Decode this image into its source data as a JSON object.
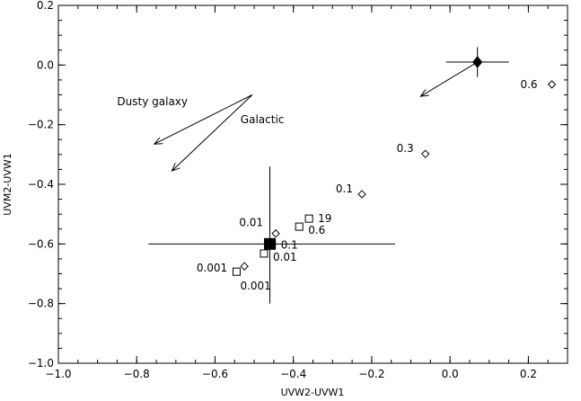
{
  "chart_data": {
    "type": "scatter",
    "xlabel": "UVW2-UVW1",
    "ylabel": "UVM2-UVW1",
    "xlim": [
      -1.0,
      0.3
    ],
    "ylim": [
      -1.0,
      0.2
    ],
    "xticks": [
      -1.0,
      -0.8,
      -0.6,
      -0.4,
      -0.2,
      0.0,
      0.2
    ],
    "yticks": [
      -1.0,
      -0.8,
      -0.6,
      -0.4,
      -0.2,
      0.0,
      0.2
    ],
    "xtick_labels": [
      "−1.0",
      "−0.8",
      "−0.6",
      "−0.4",
      "−0.2",
      "0.0",
      "0.2"
    ],
    "ytick_labels": [
      "−1.0",
      "−0.8",
      "−0.6",
      "−0.4",
      "−0.2",
      "0.0",
      "0.2"
    ],
    "grid": false,
    "series": [
      {
        "marker": "open-diamond",
        "points": [
          {
            "x": 0.26,
            "y": -0.065,
            "label": "0.6"
          },
          {
            "x": -0.063,
            "y": -0.298,
            "label": "0.3"
          },
          {
            "x": -0.225,
            "y": -0.433,
            "label": "0.1"
          },
          {
            "x": -0.445,
            "y": -0.565,
            "label": "0.01"
          },
          {
            "x": -0.525,
            "y": -0.675,
            "label": "0.001"
          }
        ]
      },
      {
        "marker": "open-square",
        "points": [
          {
            "x": -0.36,
            "y": -0.515,
            "label": "19"
          },
          {
            "x": -0.385,
            "y": -0.542,
            "label": "0.6"
          },
          {
            "x": -0.455,
            "y": -0.603,
            "label": "0.1"
          },
          {
            "x": -0.475,
            "y": -0.632,
            "label": "0.01"
          },
          {
            "x": -0.545,
            "y": -0.693,
            "label": "0.001"
          }
        ]
      },
      {
        "marker": "filled-square",
        "points": [
          {
            "x": -0.46,
            "y": -0.6,
            "xerr": [
              0.31,
              0.32
            ],
            "yerr": [
              0.2,
              0.26
            ]
          }
        ]
      },
      {
        "marker": "filled-diamond",
        "points": [
          {
            "x": 0.07,
            "y": 0.01,
            "xerr": [
              0.08,
              0.08
            ],
            "yerr": [
              0.05,
              0.05
            ]
          }
        ]
      }
    ],
    "arrows": [
      {
        "name": "dusty-galaxy",
        "from": [
          -0.505,
          -0.1
        ],
        "to": [
          -0.71,
          -0.355
        ]
      },
      {
        "name": "galactic",
        "from": [
          -0.505,
          -0.1
        ],
        "to": [
          -0.755,
          -0.265
        ]
      },
      {
        "name": "source-vector",
        "from": [
          0.07,
          0.01
        ],
        "to": [
          -0.075,
          -0.105
        ]
      }
    ],
    "annotations": [
      {
        "text": "Dusty galaxy",
        "x": -0.85,
        "y": -0.135
      },
      {
        "text": "Galactic",
        "x": -0.535,
        "y": -0.195
      }
    ]
  }
}
